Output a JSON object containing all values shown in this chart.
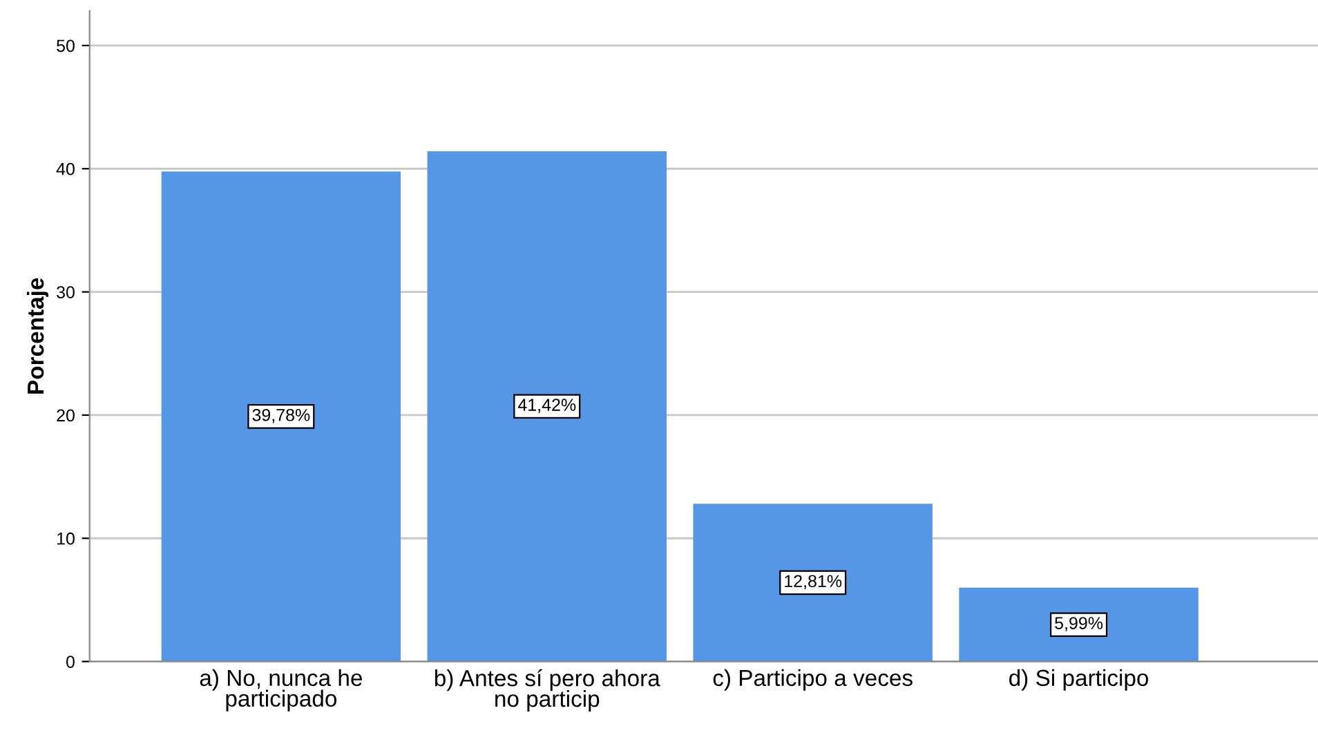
{
  "chart_data": {
    "type": "bar",
    "ylabel": "Porcentaje",
    "categories": [
      "a) No, nunca he\nparticipado",
      "b) Antes sí pero ahora\nno particip",
      "c) Participo a veces",
      "d) Si participo"
    ],
    "values": [
      39.78,
      41.42,
      12.81,
      5.99
    ],
    "value_labels": [
      "39,78%",
      "41,42%",
      "12,81%",
      "5,99%"
    ],
    "color": "#5596e6",
    "ylim": [
      0,
      52.8
    ],
    "yticks": [
      0,
      10,
      20,
      30,
      40,
      50
    ],
    "grid": "y",
    "legend": false
  }
}
